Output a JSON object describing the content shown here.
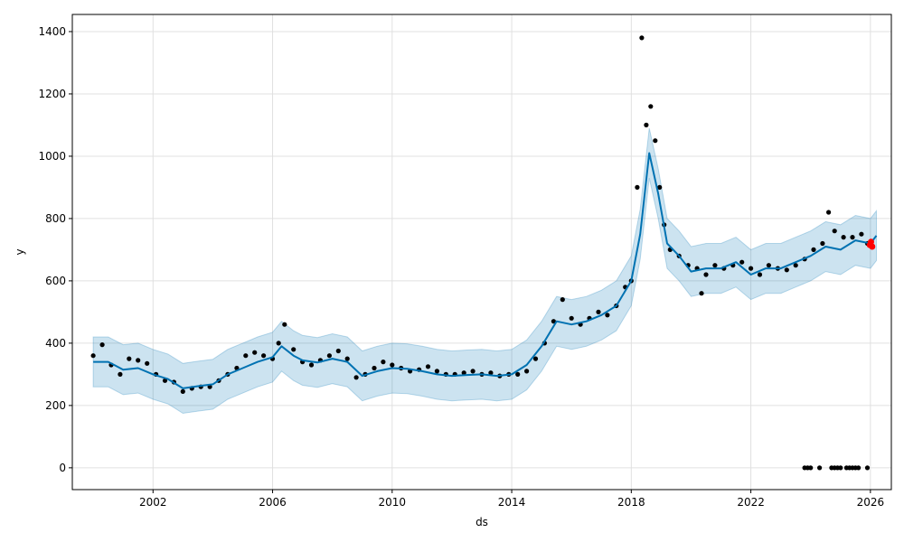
{
  "chart_data": {
    "type": "line",
    "title": "",
    "xlabel": "ds",
    "ylabel": "y",
    "xlim": [
      1999.3,
      2026.7
    ],
    "ylim": [
      -70,
      1455
    ],
    "grid": true,
    "legend": "none",
    "x_ticks": [
      2002,
      2006,
      2010,
      2014,
      2018,
      2022,
      2026
    ],
    "x_tick_labels": [
      "2002",
      "2006",
      "2010",
      "2014",
      "2018",
      "2022",
      "2026"
    ],
    "y_ticks": [
      0,
      200,
      400,
      600,
      800,
      1000,
      1200,
      1400
    ],
    "y_tick_labels": [
      "0",
      "200",
      "400",
      "600",
      "800",
      "1000",
      "1200",
      "1400"
    ],
    "colors": {
      "observed": "#000000",
      "forecast_line": "#0072B2",
      "uncertainty_band": "#0072B2",
      "highlight": "#ff0000",
      "grid": "#e0e0e0"
    },
    "series": [
      {
        "kind": "forecast",
        "x": [
          2000.0,
          2000.5,
          2001.0,
          2001.5,
          2002.0,
          2002.5,
          2003.0,
          2003.5,
          2004.0,
          2004.5,
          2005.0,
          2005.5,
          2006.0,
          2006.3,
          2006.7,
          2007.0,
          2007.5,
          2008.0,
          2008.5,
          2009.0,
          2009.5,
          2010.0,
          2010.5,
          2011.0,
          2011.5,
          2012.0,
          2012.5,
          2013.0,
          2013.5,
          2014.0,
          2014.5,
          2015.0,
          2015.5,
          2016.0,
          2016.5,
          2017.0,
          2017.5,
          2018.0,
          2018.3,
          2018.6,
          2018.9,
          2019.2,
          2019.6,
          2020.0,
          2020.5,
          2021.0,
          2021.5,
          2022.0,
          2022.5,
          2023.0,
          2023.5,
          2024.0,
          2024.5,
          2025.0,
          2025.5,
          2026.0,
          2026.2
        ],
        "yhat": [
          340,
          340,
          315,
          320,
          300,
          285,
          255,
          262,
          268,
          300,
          320,
          340,
          355,
          390,
          360,
          345,
          338,
          350,
          340,
          295,
          310,
          320,
          318,
          310,
          300,
          295,
          298,
          300,
          295,
          300,
          330,
          390,
          470,
          460,
          470,
          490,
          520,
          600,
          750,
          1010,
          880,
          720,
          680,
          630,
          640,
          640,
          660,
          620,
          640,
          640,
          660,
          680,
          710,
          700,
          730,
          720,
          745
        ],
        "yhat_lower": [
          260,
          260,
          235,
          240,
          220,
          205,
          175,
          182,
          188,
          220,
          240,
          260,
          275,
          310,
          280,
          265,
          258,
          270,
          260,
          215,
          230,
          240,
          238,
          230,
          220,
          215,
          218,
          220,
          215,
          220,
          250,
          310,
          390,
          380,
          390,
          410,
          440,
          520,
          670,
          930,
          800,
          640,
          600,
          550,
          560,
          560,
          580,
          540,
          560,
          560,
          580,
          600,
          630,
          620,
          650,
          640,
          665
        ],
        "yhat_upper": [
          420,
          420,
          395,
          400,
          380,
          365,
          335,
          342,
          348,
          380,
          400,
          420,
          435,
          470,
          440,
          425,
          418,
          430,
          420,
          375,
          390,
          400,
          398,
          390,
          380,
          375,
          378,
          380,
          375,
          380,
          410,
          470,
          550,
          540,
          550,
          570,
          600,
          680,
          830,
          1090,
          960,
          800,
          760,
          710,
          720,
          720,
          740,
          700,
          720,
          720,
          740,
          760,
          790,
          780,
          810,
          800,
          825
        ]
      },
      {
        "kind": "observed",
        "x": [
          2000.0,
          2000.3,
          2000.6,
          2000.9,
          2001.2,
          2001.5,
          2001.8,
          2002.1,
          2002.4,
          2002.7,
          2003.0,
          2003.3,
          2003.6,
          2003.9,
          2004.2,
          2004.5,
          2004.8,
          2005.1,
          2005.4,
          2005.7,
          2006.0,
          2006.2,
          2006.4,
          2006.7,
          2007.0,
          2007.3,
          2007.6,
          2007.9,
          2008.2,
          2008.5,
          2008.8,
          2009.1,
          2009.4,
          2009.7,
          2010.0,
          2010.3,
          2010.6,
          2010.9,
          2011.2,
          2011.5,
          2011.8,
          2012.1,
          2012.4,
          2012.7,
          2013.0,
          2013.3,
          2013.6,
          2013.9,
          2014.2,
          2014.5,
          2014.8,
          2015.1,
          2015.4,
          2015.7,
          2016.0,
          2016.3,
          2016.6,
          2016.9,
          2017.2,
          2017.5,
          2017.8,
          2018.0,
          2018.2,
          2018.35,
          2018.5,
          2018.65,
          2018.8,
          2018.95,
          2019.1,
          2019.3,
          2019.6,
          2019.9,
          2020.2,
          2020.35,
          2020.5,
          2020.8,
          2021.1,
          2021.4,
          2021.7,
          2022.0,
          2022.3,
          2022.6,
          2022.9,
          2023.2,
          2023.5,
          2023.8,
          2024.1,
          2024.4,
          2024.6,
          2024.8,
          2025.1,
          2025.4,
          2025.7,
          2025.9
        ],
        "y": [
          360,
          395,
          330,
          300,
          350,
          345,
          335,
          300,
          280,
          275,
          245,
          255,
          260,
          260,
          280,
          300,
          320,
          360,
          370,
          360,
          350,
          400,
          460,
          380,
          340,
          330,
          345,
          360,
          375,
          350,
          290,
          300,
          320,
          340,
          330,
          320,
          310,
          315,
          325,
          310,
          300,
          300,
          305,
          310,
          300,
          305,
          295,
          300,
          300,
          310,
          350,
          400,
          470,
          540,
          480,
          460,
          480,
          500,
          490,
          520,
          580,
          600,
          900,
          1380,
          1100,
          1160,
          1050,
          900,
          780,
          700,
          680,
          650,
          640,
          560,
          620,
          650,
          640,
          650,
          660,
          640,
          620,
          650,
          640,
          635,
          650,
          670,
          700,
          720,
          820,
          760,
          740,
          740,
          750,
          720
        ],
        "outlier_x": [
          2023.8,
          2023.9,
          2024.0,
          2024.3,
          2024.7,
          2024.8,
          2024.9,
          2025.0,
          2025.2,
          2025.3,
          2025.4,
          2025.5,
          2025.6,
          2025.9
        ],
        "outlier_y": [
          0,
          0,
          0,
          0,
          0,
          0,
          0,
          0,
          0,
          0,
          0,
          0,
          0,
          0
        ]
      },
      {
        "kind": "highlight",
        "x": [
          2025.98,
          2026.02,
          2026.06
        ],
        "y": [
          715,
          725,
          710
        ]
      }
    ]
  }
}
